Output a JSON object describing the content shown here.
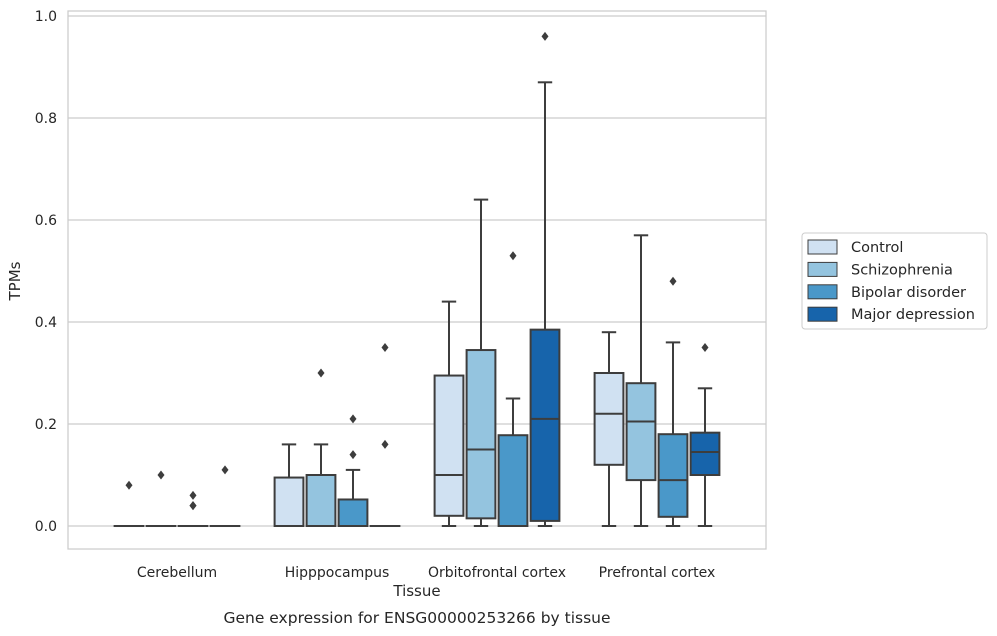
{
  "chart_data": {
    "type": "box",
    "title": "",
    "caption": "Gene expression for ENSG00000253266 by tissue",
    "xlabel": "Tissue",
    "ylabel": "TPMs",
    "ylim": [
      -0.045,
      1.01
    ],
    "yticks": [
      0.0,
      0.2,
      0.4,
      0.6,
      0.8,
      1.0
    ],
    "ytick_labels": [
      "0.0",
      "0.2",
      "0.4",
      "0.6",
      "0.8",
      "1.0"
    ],
    "grid": "horizontal",
    "legend_position": "right",
    "categories": [
      "Cerebellum",
      "Hipppocampus",
      "Orbitofrontal cortex",
      "Prefrontal cortex"
    ],
    "series": [
      {
        "name": "Control",
        "color": "#d0e1f2",
        "boxes": [
          {
            "whislo": 0,
            "q1": 0,
            "med": 0,
            "q3": 0,
            "whishi": 0,
            "fliers": [
              0.08
            ]
          },
          {
            "whislo": 0,
            "q1": 0,
            "med": 0,
            "q3": 0.095,
            "whishi": 0.16,
            "fliers": []
          },
          {
            "whislo": 0,
            "q1": 0.02,
            "med": 0.1,
            "q3": 0.295,
            "whishi": 0.44,
            "fliers": []
          },
          {
            "whislo": 0,
            "q1": 0.12,
            "med": 0.22,
            "q3": 0.3,
            "whishi": 0.38,
            "fliers": []
          }
        ]
      },
      {
        "name": "Schizophrenia",
        "color": "#94c4df",
        "boxes": [
          {
            "whislo": 0,
            "q1": 0,
            "med": 0,
            "q3": 0,
            "whishi": 0,
            "fliers": [
              0.1
            ]
          },
          {
            "whislo": 0,
            "q1": 0,
            "med": 0,
            "q3": 0.1,
            "whishi": 0.16,
            "fliers": [
              0.3
            ]
          },
          {
            "whislo": 0,
            "q1": 0.015,
            "med": 0.15,
            "q3": 0.345,
            "whishi": 0.64,
            "fliers": []
          },
          {
            "whislo": 0,
            "q1": 0.09,
            "med": 0.205,
            "q3": 0.28,
            "whishi": 0.57,
            "fliers": []
          }
        ]
      },
      {
        "name": "Bipolar disorder",
        "color": "#4a98c9",
        "boxes": [
          {
            "whislo": 0,
            "q1": 0,
            "med": 0,
            "q3": 0,
            "whishi": 0,
            "fliers": [
              0.04,
              0.06,
              0.04
            ]
          },
          {
            "whislo": 0,
            "q1": 0,
            "med": 0,
            "q3": 0.052,
            "whishi": 0.11,
            "fliers": [
              0.14,
              0.21
            ]
          },
          {
            "whislo": 0,
            "q1": 0,
            "med": 0,
            "q3": 0.178,
            "whishi": 0.25,
            "fliers": [
              0.53
            ]
          },
          {
            "whislo": 0,
            "q1": 0.018,
            "med": 0.09,
            "q3": 0.18,
            "whishi": 0.36,
            "fliers": [
              0.48
            ]
          }
        ]
      },
      {
        "name": "Major depression",
        "color": "#1764ab",
        "boxes": [
          {
            "whislo": 0,
            "q1": 0,
            "med": 0,
            "q3": 0,
            "whishi": 0,
            "fliers": [
              0.11
            ]
          },
          {
            "whislo": 0,
            "q1": 0,
            "med": 0,
            "q3": 0,
            "whishi": 0,
            "fliers": [
              0.16,
              0.35
            ]
          },
          {
            "whislo": 0,
            "q1": 0.01,
            "med": 0.21,
            "q3": 0.385,
            "whishi": 0.87,
            "fliers": [
              0.96
            ]
          },
          {
            "whislo": 0,
            "q1": 0.1,
            "med": 0.145,
            "q3": 0.183,
            "whishi": 0.27,
            "fliers": [
              0.35
            ]
          }
        ]
      }
    ]
  }
}
